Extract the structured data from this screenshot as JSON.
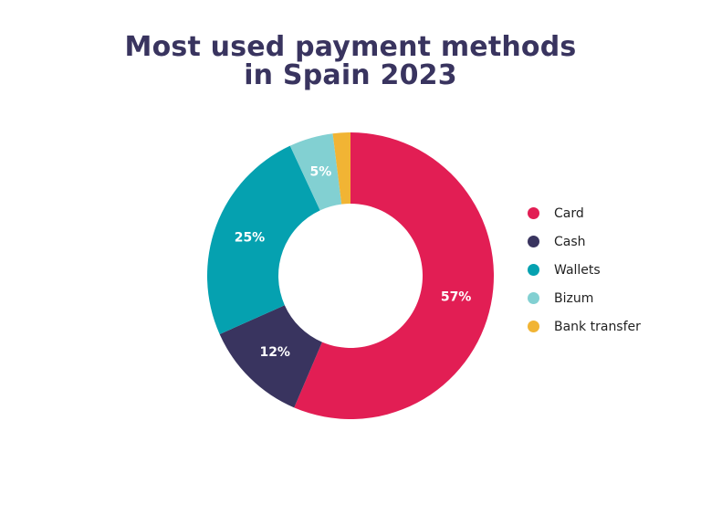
{
  "chart_data": {
    "type": "pie",
    "title_lines": [
      "Most used payment methods",
      "in Spain 2023"
    ],
    "categories": [
      "Card",
      "Cash",
      "Wallets",
      "Bizum",
      "Bank transfer"
    ],
    "values": [
      57,
      12,
      25,
      5,
      2
    ],
    "labels": [
      "57%",
      "12%",
      "25%",
      "5%",
      ""
    ],
    "colors": [
      "#e21e54",
      "#39345f",
      "#05a1b0",
      "#82d0d2",
      "#f1b434"
    ],
    "donut": true,
    "legend_position": "right"
  }
}
